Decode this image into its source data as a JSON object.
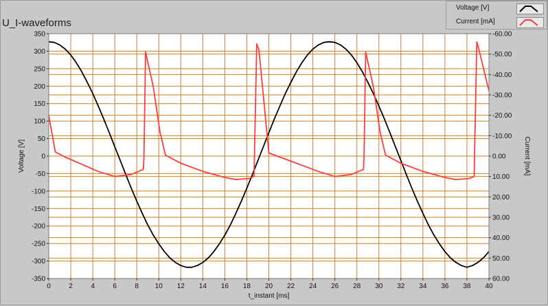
{
  "chart_data": {
    "type": "line",
    "title": "U_I-waveforms",
    "xlabel": "t_instant [ms]",
    "ylabel": "Voltage [V]",
    "y2label": "Current [mA]",
    "xlim": [
      0,
      40
    ],
    "ylim": [
      -350,
      350
    ],
    "y2lim": [
      -60,
      60
    ],
    "y2_reversed": true,
    "x_ticks": [
      0,
      2,
      4,
      6,
      8,
      10,
      12,
      14,
      16,
      18,
      20,
      22,
      24,
      26,
      28,
      30,
      32,
      34,
      36,
      38,
      40
    ],
    "y_ticks": [
      350,
      300,
      250,
      200,
      150,
      100,
      50,
      0,
      -50,
      -100,
      -150,
      -200,
      -250,
      -300,
      -350
    ],
    "y2_ticks": [
      "-60.00",
      "-50.00",
      "-40.00",
      "-30.00",
      "-20.00",
      "-10.00",
      "0.00",
      "10.00",
      "20.00",
      "30.00",
      "40.00",
      "50.00",
      "60.00"
    ],
    "grid": true,
    "legend_position": "top-right",
    "series": [
      {
        "name": "Voltage [V]",
        "axis": "left",
        "color": "#000000",
        "x": [
          0,
          0.5,
          1,
          1.5,
          2,
          2.5,
          3,
          3.5,
          4,
          4.5,
          5,
          5.5,
          6,
          6.5,
          7,
          7.5,
          8,
          8.5,
          9,
          9.5,
          10,
          10.5,
          11,
          11.5,
          12,
          12.5,
          13,
          13.5,
          14,
          14.5,
          15,
          15.5,
          16,
          16.5,
          17,
          17.5,
          18,
          18.5,
          19,
          19.5,
          20,
          20.5,
          21,
          21.5,
          22,
          22.5,
          23,
          23.5,
          24,
          24.5,
          25,
          25.5,
          26,
          26.5,
          27,
          27.5,
          28,
          28.5,
          29,
          29.5,
          30,
          30.5,
          31,
          31.5,
          32,
          32.5,
          33,
          33.5,
          34,
          34.5,
          35,
          35.5,
          36,
          36.5,
          37,
          37.5,
          38,
          38.5,
          39,
          39.5,
          40
        ],
        "values": [
          327,
          325,
          318,
          306,
          289,
          267,
          241,
          211,
          179,
          143,
          106,
          67,
          27,
          -13,
          -53,
          -92,
          -129,
          -164,
          -197,
          -226,
          -251,
          -273,
          -291,
          -304,
          -313,
          -318,
          -318,
          -313,
          -304,
          -291,
          -273,
          -251,
          -226,
          -197,
          -164,
          -129,
          -92,
          -53,
          -13,
          27,
          67,
          106,
          143,
          179,
          211,
          241,
          267,
          289,
          306,
          318,
          325,
          327,
          325,
          318,
          306,
          289,
          267,
          241,
          211,
          179,
          143,
          106,
          67,
          27,
          -13,
          -53,
          -92,
          -129,
          -164,
          -197,
          -226,
          -251,
          -273,
          -291,
          -304,
          -313,
          -318,
          -313,
          -304,
          -291,
          -273
        ]
      },
      {
        "name": "Current [mA]",
        "axis": "right",
        "color": "#ff3b3b",
        "x": [
          0,
          0.6,
          1.5,
          3,
          4.5,
          6,
          7.5,
          8.6,
          8.65,
          8.8,
          9.5,
          10.1,
          10.6,
          12,
          14,
          16,
          17,
          18.2,
          18.65,
          18.9,
          19.1,
          20,
          21.5,
          23,
          24.5,
          26,
          27.5,
          28.6,
          28.65,
          28.8,
          29.5,
          30.1,
          30.6,
          32,
          34,
          36,
          37,
          38.2,
          38.65,
          38.9,
          39.1,
          40
        ],
        "values": [
          -20,
          -2,
          0.5,
          4,
          7.5,
          10,
          9,
          6.5,
          1,
          -51,
          -34,
          -12,
          -0.5,
          3.5,
          7.5,
          10.5,
          11.5,
          11,
          10,
          -55,
          -52,
          -1.5,
          1.5,
          4.5,
          7.5,
          10,
          9,
          6.5,
          1,
          -51,
          -34,
          -12,
          -0.5,
          3.5,
          7.5,
          10.5,
          11.5,
          11,
          10,
          -56,
          -52,
          -32
        ]
      }
    ]
  },
  "legend": {
    "items": [
      {
        "label": "Voltage [V]",
        "color": "#000000"
      },
      {
        "label": "Current [mA]",
        "color": "#ff3b3b"
      }
    ]
  },
  "style": {
    "plot_background": "#ffffff",
    "grid_color": "#c8821e"
  }
}
